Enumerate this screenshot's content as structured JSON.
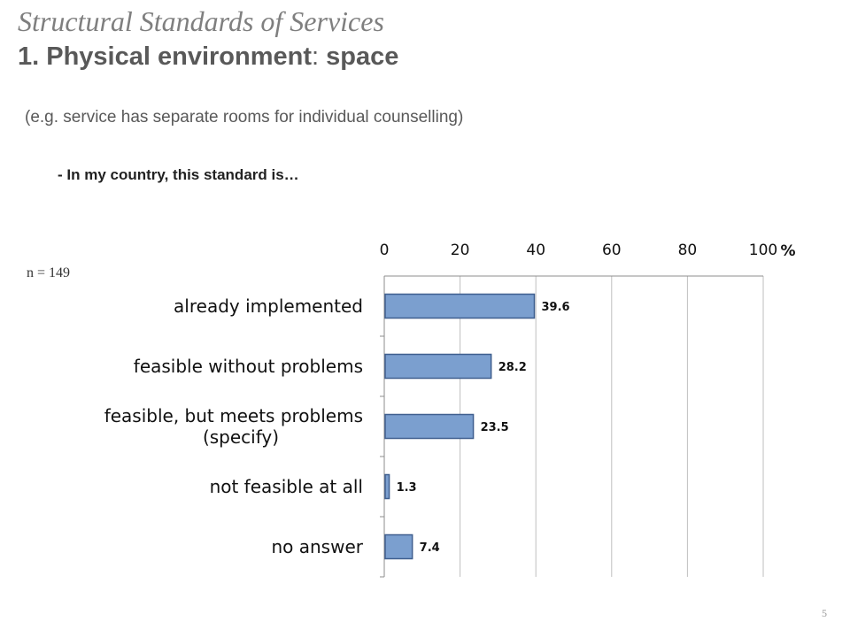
{
  "slide": {
    "title_italic": "Structural Standards of Services",
    "title_main_prefix": "1. Physical environment",
    "title_main_colon": ":",
    "title_main_suffix": " space",
    "subtitle": "(e.g. service has separate rooms for individual counselling)",
    "question": "- In my country, this standard is…",
    "n_label": "n = 149",
    "page_number": "5"
  },
  "chart_data": {
    "type": "bar",
    "orientation": "horizontal",
    "categories": [
      [
        "already implemented"
      ],
      [
        "feasible without problems"
      ],
      [
        "feasible, but meets problems",
        "(specify)"
      ],
      [
        "not feasible at all"
      ],
      [
        "no answer"
      ]
    ],
    "values": [
      39.6,
      28.2,
      23.5,
      1.3,
      7.4
    ],
    "value_labels": [
      "39.6",
      "28.2",
      "23.5",
      "1.3",
      "7.4"
    ],
    "xlim": [
      0,
      100
    ],
    "xticks": [
      0,
      20,
      40,
      60,
      80,
      100
    ],
    "xtick_labels": [
      "0",
      "20",
      "40",
      "60",
      "80",
      "100"
    ],
    "xlabel_unit": "%",
    "axis_position": "top",
    "grid": true,
    "legend": false,
    "colors": {
      "bar_fill": "#7b9fcf",
      "bar_stroke": "#3f5f8f",
      "grid": "#bfbfbf",
      "text": "#111111"
    }
  }
}
